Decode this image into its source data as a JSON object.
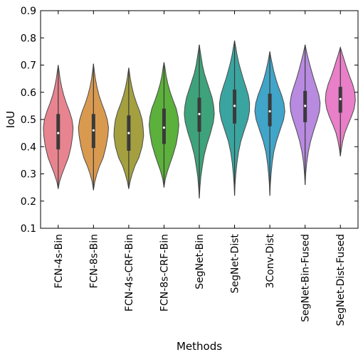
{
  "chart_data": {
    "type": "violin",
    "xlabel": "Methods",
    "ylabel": "IoU",
    "ylim": [
      0.1,
      0.9
    ],
    "yticks": [
      "0.1",
      "0.2",
      "0.3",
      "0.4",
      "0.5",
      "0.6",
      "0.7",
      "0.8",
      "0.9"
    ],
    "grid": false,
    "legend": "none",
    "categories": [
      "FCN-4s-Bin",
      "FCN-8s-Bin",
      "FCN-4s-CRF-Bin",
      "FCN-8s-CRF-Bin",
      "SegNet-Bin",
      "SegNet-Dist",
      "3Conv-Dist",
      "SegNet-Bin-Fused",
      "SegNet-Dist-Fused"
    ],
    "series": [
      {
        "category": "FCN-4s-Bin",
        "color": "#e8848f",
        "min": 0.245,
        "q1": 0.39,
        "median": 0.45,
        "q3": 0.52,
        "max": 0.7,
        "density": [
          [
            0.245,
            0.0
          ],
          [
            0.27,
            0.08
          ],
          [
            0.3,
            0.25
          ],
          [
            0.33,
            0.45
          ],
          [
            0.36,
            0.65
          ],
          [
            0.4,
            0.82
          ],
          [
            0.44,
            0.92
          ],
          [
            0.47,
            0.95
          ],
          [
            0.5,
            0.88
          ],
          [
            0.53,
            0.72
          ],
          [
            0.56,
            0.52
          ],
          [
            0.59,
            0.35
          ],
          [
            0.62,
            0.22
          ],
          [
            0.65,
            0.12
          ],
          [
            0.68,
            0.05
          ],
          [
            0.7,
            0.0
          ]
        ]
      },
      {
        "category": "FCN-8s-Bin",
        "color": "#d99a50",
        "min": 0.24,
        "q1": 0.395,
        "median": 0.46,
        "q3": 0.52,
        "max": 0.705,
        "density": [
          [
            0.24,
            0.0
          ],
          [
            0.27,
            0.08
          ],
          [
            0.3,
            0.22
          ],
          [
            0.33,
            0.4
          ],
          [
            0.36,
            0.62
          ],
          [
            0.4,
            0.8
          ],
          [
            0.44,
            0.92
          ],
          [
            0.47,
            0.96
          ],
          [
            0.5,
            0.88
          ],
          [
            0.53,
            0.72
          ],
          [
            0.56,
            0.52
          ],
          [
            0.59,
            0.35
          ],
          [
            0.62,
            0.22
          ],
          [
            0.65,
            0.12
          ],
          [
            0.68,
            0.05
          ],
          [
            0.705,
            0.0
          ]
        ]
      },
      {
        "category": "FCN-4s-CRF-Bin",
        "color": "#a4a040",
        "min": 0.245,
        "q1": 0.385,
        "median": 0.45,
        "q3": 0.515,
        "max": 0.69,
        "density": [
          [
            0.245,
            0.0
          ],
          [
            0.27,
            0.08
          ],
          [
            0.3,
            0.22
          ],
          [
            0.33,
            0.4
          ],
          [
            0.36,
            0.65
          ],
          [
            0.4,
            0.85
          ],
          [
            0.44,
            0.95
          ],
          [
            0.47,
            0.92
          ],
          [
            0.5,
            0.85
          ],
          [
            0.53,
            0.7
          ],
          [
            0.56,
            0.5
          ],
          [
            0.59,
            0.33
          ],
          [
            0.62,
            0.2
          ],
          [
            0.65,
            0.1
          ],
          [
            0.69,
            0.0
          ]
        ]
      },
      {
        "category": "FCN-8s-CRF-Bin",
        "color": "#5cb03c",
        "min": 0.25,
        "q1": 0.41,
        "median": 0.47,
        "q3": 0.54,
        "max": 0.71,
        "density": [
          [
            0.25,
            0.0
          ],
          [
            0.28,
            0.08
          ],
          [
            0.31,
            0.22
          ],
          [
            0.34,
            0.4
          ],
          [
            0.37,
            0.58
          ],
          [
            0.41,
            0.78
          ],
          [
            0.45,
            0.9
          ],
          [
            0.48,
            0.95
          ],
          [
            0.51,
            0.9
          ],
          [
            0.54,
            0.78
          ],
          [
            0.57,
            0.58
          ],
          [
            0.6,
            0.4
          ],
          [
            0.63,
            0.25
          ],
          [
            0.66,
            0.14
          ],
          [
            0.69,
            0.06
          ],
          [
            0.71,
            0.0
          ]
        ]
      },
      {
        "category": "SegNet-Bin",
        "color": "#3ea37a",
        "min": 0.21,
        "q1": 0.455,
        "median": 0.52,
        "q3": 0.58,
        "max": 0.775,
        "density": [
          [
            0.21,
            0.0
          ],
          [
            0.25,
            0.04
          ],
          [
            0.29,
            0.1
          ],
          [
            0.33,
            0.2
          ],
          [
            0.37,
            0.32
          ],
          [
            0.41,
            0.5
          ],
          [
            0.45,
            0.72
          ],
          [
            0.49,
            0.9
          ],
          [
            0.52,
            0.96
          ],
          [
            0.55,
            0.92
          ],
          [
            0.58,
            0.82
          ],
          [
            0.61,
            0.65
          ],
          [
            0.64,
            0.48
          ],
          [
            0.67,
            0.32
          ],
          [
            0.7,
            0.2
          ],
          [
            0.73,
            0.12
          ],
          [
            0.755,
            0.05
          ],
          [
            0.775,
            0.0
          ]
        ]
      },
      {
        "category": "SegNet-Dist",
        "color": "#3aa5a0",
        "min": 0.22,
        "q1": 0.485,
        "median": 0.55,
        "q3": 0.61,
        "max": 0.79,
        "density": [
          [
            0.22,
            0.0
          ],
          [
            0.26,
            0.03
          ],
          [
            0.3,
            0.08
          ],
          [
            0.34,
            0.15
          ],
          [
            0.38,
            0.25
          ],
          [
            0.42,
            0.4
          ],
          [
            0.46,
            0.62
          ],
          [
            0.5,
            0.85
          ],
          [
            0.53,
            0.95
          ],
          [
            0.56,
            0.96
          ],
          [
            0.59,
            0.88
          ],
          [
            0.62,
            0.72
          ],
          [
            0.65,
            0.55
          ],
          [
            0.68,
            0.4
          ],
          [
            0.71,
            0.26
          ],
          [
            0.74,
            0.15
          ],
          [
            0.77,
            0.06
          ],
          [
            0.79,
            0.0
          ]
        ]
      },
      {
        "category": "3Conv-Dist",
        "color": "#40a5c8",
        "min": 0.22,
        "q1": 0.475,
        "median": 0.53,
        "q3": 0.595,
        "max": 0.75,
        "density": [
          [
            0.22,
            0.0
          ],
          [
            0.26,
            0.03
          ],
          [
            0.3,
            0.08
          ],
          [
            0.34,
            0.15
          ],
          [
            0.38,
            0.25
          ],
          [
            0.42,
            0.42
          ],
          [
            0.46,
            0.65
          ],
          [
            0.5,
            0.88
          ],
          [
            0.53,
            0.96
          ],
          [
            0.56,
            0.9
          ],
          [
            0.59,
            0.75
          ],
          [
            0.62,
            0.55
          ],
          [
            0.65,
            0.38
          ],
          [
            0.68,
            0.24
          ],
          [
            0.71,
            0.13
          ],
          [
            0.73,
            0.06
          ],
          [
            0.75,
            0.0
          ]
        ]
      },
      {
        "category": "SegNet-Bin-Fused",
        "color": "#b88ae0",
        "min": 0.26,
        "q1": 0.49,
        "median": 0.55,
        "q3": 0.605,
        "max": 0.775,
        "density": [
          [
            0.26,
            0.0
          ],
          [
            0.3,
            0.04
          ],
          [
            0.34,
            0.1
          ],
          [
            0.38,
            0.2
          ],
          [
            0.42,
            0.35
          ],
          [
            0.46,
            0.55
          ],
          [
            0.5,
            0.78
          ],
          [
            0.53,
            0.92
          ],
          [
            0.56,
            0.96
          ],
          [
            0.59,
            0.88
          ],
          [
            0.62,
            0.72
          ],
          [
            0.65,
            0.55
          ],
          [
            0.68,
            0.4
          ],
          [
            0.71,
            0.26
          ],
          [
            0.74,
            0.13
          ],
          [
            0.775,
            0.0
          ]
        ]
      },
      {
        "category": "SegNet-Dist-Fused",
        "color": "#e87fc8",
        "min": 0.365,
        "q1": 0.525,
        "median": 0.575,
        "q3": 0.62,
        "max": 0.765,
        "density": [
          [
            0.365,
            0.0
          ],
          [
            0.39,
            0.06
          ],
          [
            0.42,
            0.15
          ],
          [
            0.45,
            0.28
          ],
          [
            0.48,
            0.48
          ],
          [
            0.51,
            0.7
          ],
          [
            0.54,
            0.88
          ],
          [
            0.57,
            0.96
          ],
          [
            0.6,
            0.92
          ],
          [
            0.63,
            0.78
          ],
          [
            0.66,
            0.58
          ],
          [
            0.69,
            0.4
          ],
          [
            0.72,
            0.24
          ],
          [
            0.74,
            0.13
          ],
          [
            0.765,
            0.0
          ]
        ]
      }
    ]
  }
}
